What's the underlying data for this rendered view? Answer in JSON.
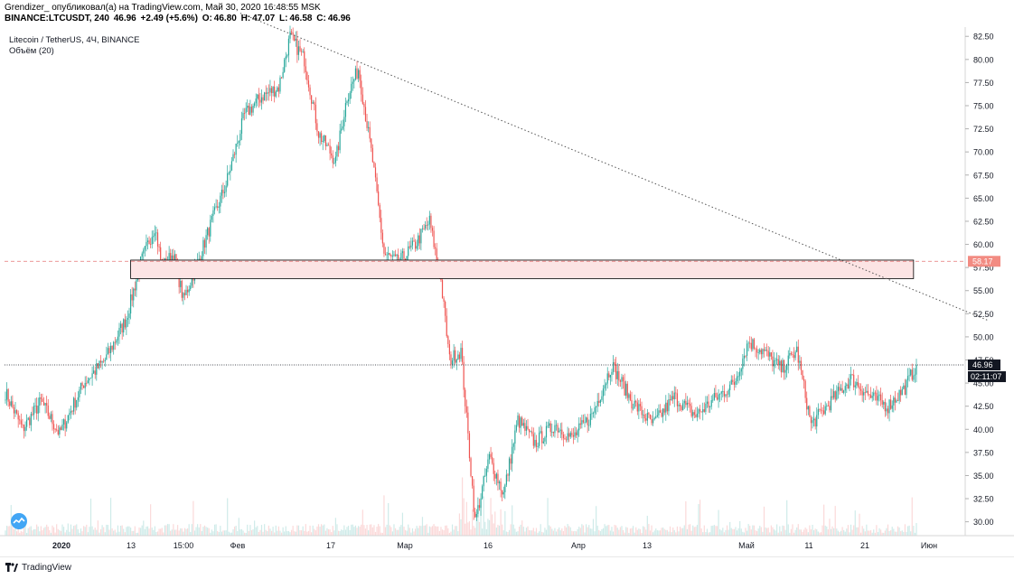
{
  "header": {
    "line1": "Grendizer_ опубликовал(а) на TradingView.com, Май 30, 2020 16:48:55 MSK",
    "symbol": "BINANCE:LTCUSDT, 240",
    "last": "46.96",
    "change": "+2.49 (+5.6%)",
    "o_label": "O:",
    "o_value": "46.80",
    "h_label": "H:",
    "h_value": "47.07",
    "l_label": "L:",
    "l_value": "46.58",
    "c_label": "C:",
    "c_value": "46.96"
  },
  "legend": {
    "title": "Litecoin / TetherUS, 4Ч, BINANCE",
    "volume": "Объём (20)"
  },
  "footer": {
    "brand": "TradingView"
  },
  "colors": {
    "up": "#26a69a",
    "down": "#ef5350",
    "zone_fill": "#fce4e4",
    "zone_stroke": "#000000",
    "last_price_bg": "#131722",
    "level_badge_bg": "#f28b82"
  },
  "chart_data": {
    "type": "candlestick",
    "ylim": [
      28.5,
      83.5
    ],
    "yticks": [
      "82.50",
      "80.00",
      "77.50",
      "75.00",
      "72.50",
      "70.00",
      "67.50",
      "65.00",
      "62.50",
      "60.00",
      "57.50",
      "55.00",
      "52.50",
      "50.00",
      "47.50",
      "45.00",
      "42.50",
      "40.00",
      "37.50",
      "35.00",
      "32.50",
      "30.00"
    ],
    "xticks": [
      "2020",
      "13",
      "15:00",
      "Фев",
      "17",
      "Мар",
      "16",
      "Апр",
      "13",
      "Май",
      "11",
      "21",
      "Июн"
    ],
    "anchors": [
      {
        "i": 0,
        "p": 44
      },
      {
        "i": 12,
        "p": 40
      },
      {
        "i": 25,
        "p": 43
      },
      {
        "i": 38,
        "p": 39.5
      },
      {
        "i": 55,
        "p": 45
      },
      {
        "i": 70,
        "p": 47.5
      },
      {
        "i": 85,
        "p": 52
      },
      {
        "i": 95,
        "p": 58
      },
      {
        "i": 105,
        "p": 62
      },
      {
        "i": 110,
        "p": 57.5
      },
      {
        "i": 118,
        "p": 59
      },
      {
        "i": 125,
        "p": 54
      },
      {
        "i": 135,
        "p": 58
      },
      {
        "i": 145,
        "p": 62.5
      },
      {
        "i": 155,
        "p": 66.5
      },
      {
        "i": 168,
        "p": 74
      },
      {
        "i": 180,
        "p": 76
      },
      {
        "i": 192,
        "p": 77
      },
      {
        "i": 200,
        "p": 82.5
      },
      {
        "i": 210,
        "p": 80
      },
      {
        "i": 220,
        "p": 72
      },
      {
        "i": 232,
        "p": 69
      },
      {
        "i": 240,
        "p": 76
      },
      {
        "i": 248,
        "p": 79
      },
      {
        "i": 258,
        "p": 69
      },
      {
        "i": 266,
        "p": 59
      },
      {
        "i": 276,
        "p": 58
      },
      {
        "i": 288,
        "p": 60
      },
      {
        "i": 298,
        "p": 62.5
      },
      {
        "i": 306,
        "p": 56
      },
      {
        "i": 312,
        "p": 47.5
      },
      {
        "i": 320,
        "p": 48.5
      },
      {
        "i": 330,
        "p": 30
      },
      {
        "i": 340,
        "p": 37
      },
      {
        "i": 350,
        "p": 33
      },
      {
        "i": 360,
        "p": 41
      },
      {
        "i": 372,
        "p": 38.5
      },
      {
        "i": 386,
        "p": 40.5
      },
      {
        "i": 398,
        "p": 39
      },
      {
        "i": 412,
        "p": 41.5
      },
      {
        "i": 426,
        "p": 47
      },
      {
        "i": 440,
        "p": 43
      },
      {
        "i": 455,
        "p": 40.5
      },
      {
        "i": 470,
        "p": 43.5
      },
      {
        "i": 485,
        "p": 41.5
      },
      {
        "i": 500,
        "p": 43.5
      },
      {
        "i": 512,
        "p": 45
      },
      {
        "i": 522,
        "p": 49.5
      },
      {
        "i": 532,
        "p": 48.5
      },
      {
        "i": 545,
        "p": 46.5
      },
      {
        "i": 556,
        "p": 48.5
      },
      {
        "i": 566,
        "p": 40.5
      },
      {
        "i": 580,
        "p": 43
      },
      {
        "i": 594,
        "p": 45.5
      },
      {
        "i": 608,
        "p": 43.5
      },
      {
        "i": 620,
        "p": 42.5
      },
      {
        "i": 632,
        "p": 44.5
      },
      {
        "i": 640,
        "p": 46.96
      }
    ],
    "volume_scale": [
      0,
      1
    ],
    "resistance_zone": {
      "from_index": 88,
      "to_index": 638,
      "low": 56.3,
      "high": 58.3
    },
    "trendline": {
      "from": {
        "i": 165,
        "p": 85
      },
      "to": {
        "i": 690,
        "p": 51.8
      }
    },
    "dashed_level": {
      "price": 58.17,
      "label": "58.17"
    },
    "last_price": {
      "price": 46.96,
      "label": "46.96",
      "countdown": "02:11:07"
    }
  }
}
